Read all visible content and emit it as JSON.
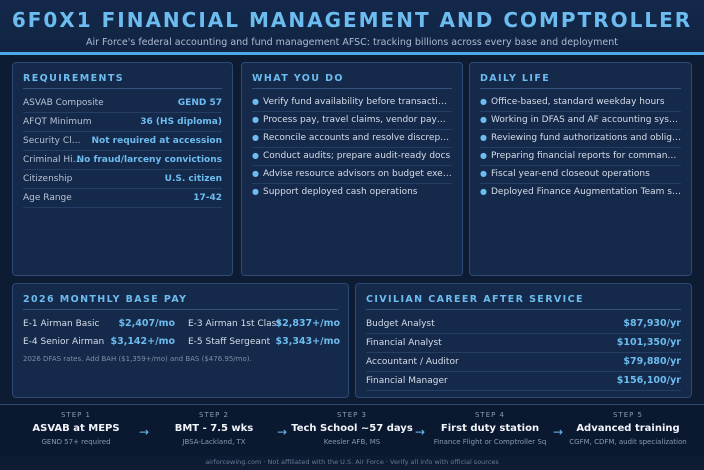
{
  "header": {
    "title": "6F0X1 FINANCIAL MANAGEMENT AND COMPTROLLER",
    "subtitle": "Air Force's federal accounting and fund management AFSC: tracking billions across every base and deployment"
  },
  "requirements": {
    "title": "REQUIREMENTS",
    "rows": [
      {
        "label": "ASVAB Composite",
        "value": "GEND 57"
      },
      {
        "label": "AFQT Minimum",
        "value": "36 (HS diploma)"
      },
      {
        "label": "Security Clearance",
        "value": "Not required at accession"
      },
      {
        "label": "Criminal History",
        "value": "No fraud/larceny convictions"
      },
      {
        "label": "Citizenship",
        "value": "U.S. citizen"
      },
      {
        "label": "Age Range",
        "value": "17-42"
      }
    ]
  },
  "what_you_do": {
    "title": "WHAT YOU DO",
    "items": [
      "Verify fund availability before transactions",
      "Process pay, travel claims, vendor payments",
      "Reconcile accounts and resolve discrepancies",
      "Conduct audits; prepare audit-ready docs",
      "Advise resource advisors on budget execution",
      "Support deployed cash operations"
    ]
  },
  "daily_life": {
    "title": "DAILY LIFE",
    "items": [
      "Office-based, standard weekday hours",
      "Working in DFAS and AF accounting systems",
      "Reviewing fund authorizations and obligations",
      "Preparing financial reports for commanders",
      "Fiscal year-end closeout operations",
      "Deployed Finance Augmentation Team support"
    ]
  },
  "pay": {
    "title": "2026 MONTHLY BASE PAY",
    "rows": [
      {
        "label": "E-1 Airman Basic",
        "value": "$2,407/mo"
      },
      {
        "label": "E-3 Airman 1st Class",
        "value": "$2,837+/mo"
      },
      {
        "label": "E-4 Senior Airman",
        "value": "$3,142+/mo"
      },
      {
        "label": "E-5 Staff Sergeant",
        "value": "$3,343+/mo"
      }
    ],
    "note": "2026 DFAS rates. Add BAH ($1,359+/mo) and BAS ($476.95/mo)."
  },
  "civilian": {
    "title": "CIVILIAN CAREER AFTER SERVICE",
    "rows": [
      {
        "label": "Budget Analyst",
        "value": "$87,930/yr"
      },
      {
        "label": "Financial Analyst",
        "value": "$101,350/yr"
      },
      {
        "label": "Accountant / Auditor",
        "value": "$79,880/yr"
      },
      {
        "label": "Financial Manager",
        "value": "$156,100/yr"
      }
    ]
  },
  "steps": [
    {
      "label": "STEP 1",
      "name": "ASVAB at MEPS",
      "desc": "GEND 57+ required"
    },
    {
      "label": "STEP 2",
      "name": "BMT - 7.5 wks",
      "desc": "JBSA-Lackland, TX"
    },
    {
      "label": "STEP 3",
      "name": "Tech School ~57 days",
      "desc": "Keesler AFB, MS"
    },
    {
      "label": "STEP 4",
      "name": "First duty station",
      "desc": "Finance Flight or Comptroller Sq"
    },
    {
      "label": "STEP 5",
      "name": "Advanced training",
      "desc": "CGFM, CDFM, audit specialization"
    }
  ],
  "arrow": "→",
  "footer": "airforcewing.com · Not affiliated with the U.S. Air Force · Verify all info with official sources"
}
